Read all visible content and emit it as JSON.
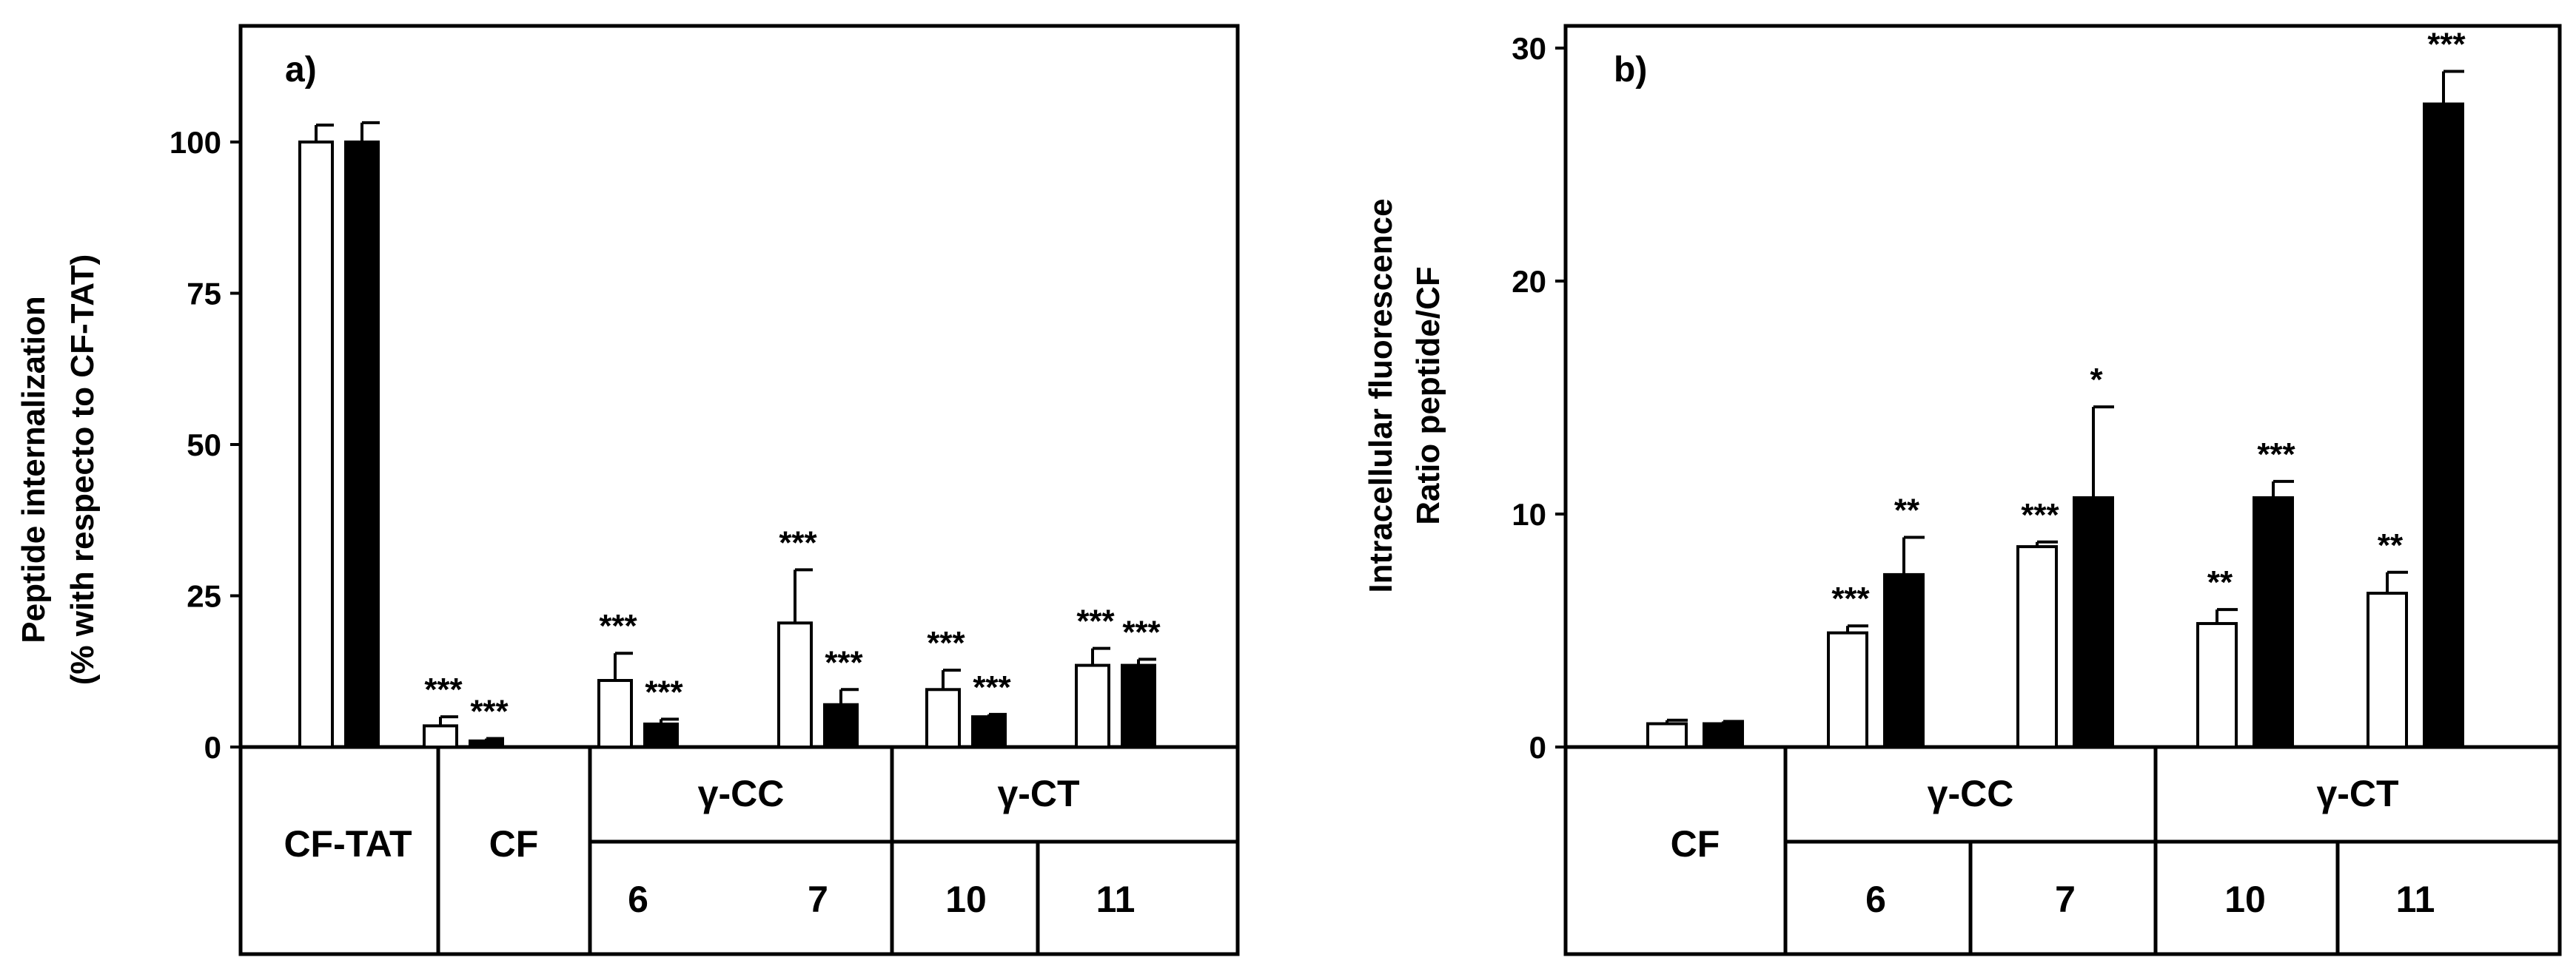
{
  "chart_data": [
    {
      "type": "bar",
      "panel_label": "a)",
      "ylabel_lines": [
        "Peptide internalization",
        "(% with respecto to CF-TAT)"
      ],
      "ylim": [
        0,
        120
      ],
      "yticks": [
        0,
        25,
        50,
        75,
        100
      ],
      "series": [
        {
          "name": "white",
          "color": "#ffffff",
          "values": [
            100,
            3.5,
            11,
            20.5,
            9.5,
            13.5
          ],
          "errors": [
            2.8,
            1.5,
            4.5,
            8.8,
            3.2,
            2.8
          ],
          "sig": [
            "",
            "***",
            "***",
            "***",
            "***",
            "***"
          ]
        },
        {
          "name": "black",
          "color": "#000000",
          "values": [
            100,
            1,
            3.8,
            7,
            5,
            13.5
          ],
          "errors": [
            3.2,
            0.4,
            0.8,
            2.5,
            0.4,
            1.0
          ],
          "sig": [
            "",
            "***",
            "***",
            "***",
            "***",
            "***"
          ]
        }
      ],
      "table": {
        "groups": [
          {
            "label": "CF-TAT",
            "sub": []
          },
          {
            "label": "CF",
            "sub": []
          },
          {
            "label": "γ-CC",
            "sub": [
              "6",
              "7"
            ]
          },
          {
            "label": "γ-CT",
            "sub": [
              "10",
              "11"
            ]
          }
        ]
      }
    },
    {
      "type": "bar",
      "panel_label": "b)",
      "ylabel_lines": [
        "Intracellular fluorescence",
        "Ratio peptide/CF"
      ],
      "ylim": [
        0,
        30
      ],
      "yticks": [
        0,
        10,
        20,
        30
      ],
      "series": [
        {
          "name": "white",
          "color": "#ffffff",
          "values": [
            1.0,
            4.9,
            8.6,
            5.3,
            6.6
          ],
          "errors": [
            0.15,
            0.3,
            0.2,
            0.6,
            0.9
          ],
          "sig": [
            "",
            "***",
            "***",
            "**",
            "**"
          ]
        },
        {
          "name": "black",
          "color": "#000000",
          "values": [
            1.0,
            7.4,
            10.7,
            10.7,
            27.6
          ],
          "errors": [
            0.1,
            1.6,
            3.9,
            0.7,
            1.4
          ],
          "sig": [
            "",
            "**",
            "*",
            "***",
            "***"
          ]
        }
      ],
      "table": {
        "groups": [
          {
            "label": "CF",
            "sub": []
          },
          {
            "label": "γ-CC",
            "sub": [
              "6",
              "7"
            ]
          },
          {
            "label": "γ-CT",
            "sub": [
              "10",
              "11"
            ]
          }
        ]
      }
    }
  ]
}
